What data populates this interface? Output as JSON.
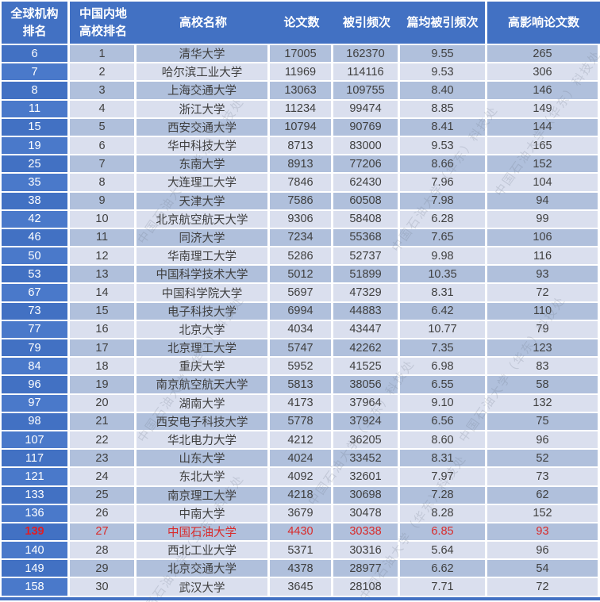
{
  "table": {
    "headers": [
      {
        "line1": "全球机构",
        "line2": "排名"
      },
      {
        "line1": "中国内地",
        "line2": "高校排名"
      },
      {
        "line1": "高校名称",
        "line2": ""
      },
      {
        "line1": "论文数",
        "line2": ""
      },
      {
        "line1": "被引频次",
        "line2": ""
      },
      {
        "line1": "篇均被引频次",
        "line2": ""
      },
      {
        "line1": "高影响论文数",
        "line2": ""
      }
    ],
    "rows": [
      {
        "highlight": false,
        "cells": [
          "6",
          "1",
          "清华大学",
          "17005",
          "162370",
          "9.55",
          "265"
        ]
      },
      {
        "highlight": false,
        "cells": [
          "7",
          "2",
          "哈尔滨工业大学",
          "11969",
          "114116",
          "9.53",
          "306"
        ]
      },
      {
        "highlight": false,
        "cells": [
          "8",
          "3",
          "上海交通大学",
          "13063",
          "109755",
          "8.40",
          "146"
        ]
      },
      {
        "highlight": false,
        "cells": [
          "11",
          "4",
          "浙江大学",
          "11234",
          "99474",
          "8.85",
          "149"
        ]
      },
      {
        "highlight": false,
        "cells": [
          "15",
          "5",
          "西安交通大学",
          "10794",
          "90769",
          "8.41",
          "144"
        ]
      },
      {
        "highlight": false,
        "cells": [
          "19",
          "6",
          "华中科技大学",
          "8713",
          "83000",
          "9.53",
          "165"
        ]
      },
      {
        "highlight": false,
        "cells": [
          "25",
          "7",
          "东南大学",
          "8913",
          "77206",
          "8.66",
          "152"
        ]
      },
      {
        "highlight": false,
        "cells": [
          "35",
          "8",
          "大连理工大学",
          "7846",
          "62430",
          "7.96",
          "104"
        ]
      },
      {
        "highlight": false,
        "cells": [
          "38",
          "9",
          "天津大学",
          "7586",
          "60508",
          "7.98",
          "94"
        ]
      },
      {
        "highlight": false,
        "cells": [
          "42",
          "10",
          "北京航空航天大学",
          "9306",
          "58408",
          "6.28",
          "99"
        ]
      },
      {
        "highlight": false,
        "cells": [
          "46",
          "11",
          "同济大学",
          "7234",
          "55368",
          "7.65",
          "106"
        ]
      },
      {
        "highlight": false,
        "cells": [
          "50",
          "12",
          "华南理工大学",
          "5286",
          "52737",
          "9.98",
          "116"
        ]
      },
      {
        "highlight": false,
        "cells": [
          "53",
          "13",
          "中国科学技术大学",
          "5012",
          "51899",
          "10.35",
          "93"
        ]
      },
      {
        "highlight": false,
        "cells": [
          "67",
          "14",
          "中国科学院大学",
          "5697",
          "47329",
          "8.31",
          "72"
        ]
      },
      {
        "highlight": false,
        "cells": [
          "73",
          "15",
          "电子科技大学",
          "6994",
          "44883",
          "6.42",
          "110"
        ]
      },
      {
        "highlight": false,
        "cells": [
          "77",
          "16",
          "北京大学",
          "4034",
          "43447",
          "10.77",
          "79"
        ]
      },
      {
        "highlight": false,
        "cells": [
          "79",
          "17",
          "北京理工大学",
          "5747",
          "42262",
          "7.35",
          "123"
        ]
      },
      {
        "highlight": false,
        "cells": [
          "84",
          "18",
          "重庆大学",
          "5952",
          "41525",
          "6.98",
          "83"
        ]
      },
      {
        "highlight": false,
        "cells": [
          "96",
          "19",
          "南京航空航天大学",
          "5813",
          "38056",
          "6.55",
          "58"
        ]
      },
      {
        "highlight": false,
        "cells": [
          "97",
          "20",
          "湖南大学",
          "4173",
          "37964",
          "9.10",
          "132"
        ]
      },
      {
        "highlight": false,
        "cells": [
          "98",
          "21",
          "西安电子科技大学",
          "5778",
          "37924",
          "6.56",
          "75"
        ]
      },
      {
        "highlight": false,
        "cells": [
          "107",
          "22",
          "华北电力大学",
          "4212",
          "36205",
          "8.60",
          "96"
        ]
      },
      {
        "highlight": false,
        "cells": [
          "117",
          "23",
          "山东大学",
          "4024",
          "33452",
          "8.31",
          "52"
        ]
      },
      {
        "highlight": false,
        "cells": [
          "121",
          "24",
          "东北大学",
          "4092",
          "32601",
          "7.97",
          "73"
        ]
      },
      {
        "highlight": false,
        "cells": [
          "133",
          "25",
          "南京理工大学",
          "4218",
          "30698",
          "7.28",
          "62"
        ]
      },
      {
        "highlight": false,
        "cells": [
          "136",
          "26",
          "中南大学",
          "3679",
          "30478",
          "8.28",
          "152"
        ]
      },
      {
        "highlight": true,
        "cells": [
          "139",
          "27",
          "中国石油大学",
          "4430",
          "30338",
          "6.85",
          "93"
        ]
      },
      {
        "highlight": false,
        "cells": [
          "140",
          "28",
          "西北工业大学",
          "5371",
          "30316",
          "5.64",
          "96"
        ]
      },
      {
        "highlight": false,
        "cells": [
          "149",
          "29",
          "北京交通大学",
          "4378",
          "28977",
          "6.62",
          "54"
        ]
      },
      {
        "highlight": false,
        "cells": [
          "158",
          "30",
          "武汉大学",
          "3645",
          "28108",
          "7.71",
          "72"
        ]
      }
    ]
  },
  "watermark": {
    "text": "中国石油大学（华东）科技处"
  },
  "colors": {
    "header_blue": "#4271c3",
    "first_col_blue": "#4a79ca",
    "band_dark": "#b0c0dc",
    "band_light": "#dadfee",
    "highlight_red": "#d92b2b",
    "gridline_white": "#ffffff"
  }
}
